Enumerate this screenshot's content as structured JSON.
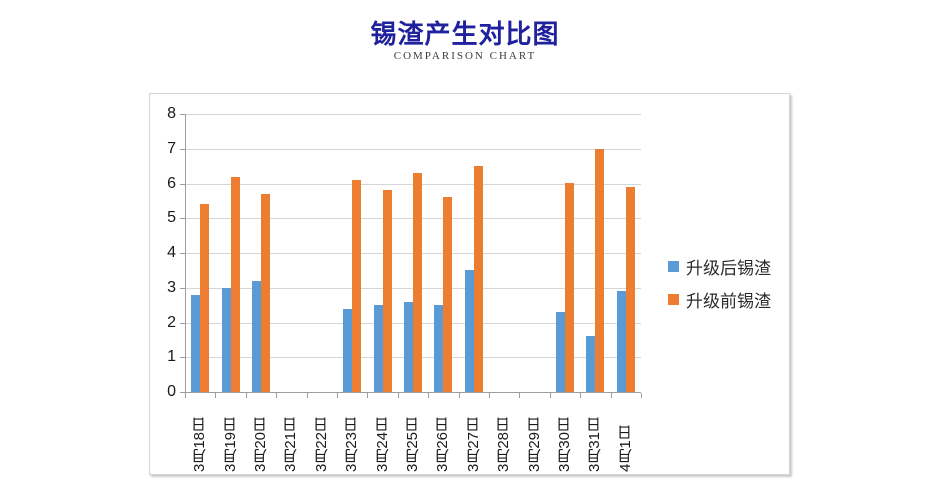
{
  "page": {
    "title": "锡渣产生对比图",
    "subtitle": "COMPARISON CHART"
  },
  "chart_data": {
    "type": "bar",
    "title": "锡渣产生对比图",
    "subtitle": "COMPARISON CHART",
    "categories": [
      "3月18日",
      "3月19日",
      "3月20日",
      "3月21日",
      "3月22日",
      "3月23日",
      "3月24日",
      "3月25日",
      "3月26日",
      "3月27日",
      "3月28日",
      "3月29日",
      "3月30日",
      "3月31日",
      "4月1日"
    ],
    "series": [
      {
        "id": "after-upgrade",
        "name": "升级后锡渣",
        "color": "#5B9BD5",
        "values": [
          2.8,
          3.0,
          3.2,
          null,
          null,
          2.4,
          2.5,
          2.6,
          2.5,
          3.5,
          null,
          null,
          2.3,
          1.6,
          2.9
        ]
      },
      {
        "id": "before-upgrade",
        "name": "升级前锡渣",
        "color": "#ED7D31",
        "values": [
          5.4,
          6.2,
          5.7,
          null,
          null,
          6.1,
          5.8,
          6.3,
          5.6,
          6.5,
          null,
          null,
          6.0,
          7.0,
          5.9
        ]
      }
    ],
    "xlabel": "",
    "ylabel": "",
    "ylim": [
      0,
      8
    ],
    "ytick_step": 1,
    "grid": true,
    "legend_position": "right"
  },
  "colors": {
    "title": "#1f219e",
    "series_after": "#5B9BD5",
    "series_before": "#ED7D31",
    "gridline": "#d6d6d6",
    "axis": "#9e9e9e"
  }
}
